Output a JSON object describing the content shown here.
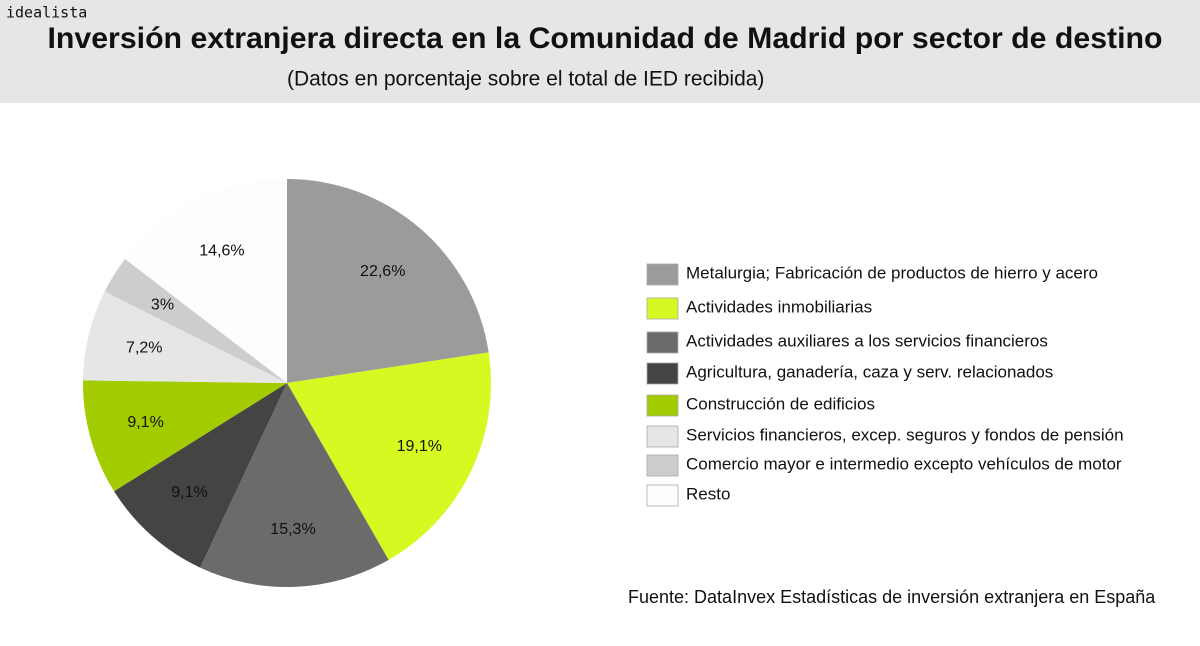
{
  "brand": "idealista",
  "chart_data": {
    "type": "pie",
    "title": "Inversión extranjera directa en la Comunidad de Madrid por sector de destino",
    "subtitle": "(Datos en porcentaje sobre el total de IED recibida)",
    "source": "Fuente: DataInvex Estadísticas de inversión extranjera en España",
    "categories": [
      "Metalurgia; Fabricación de productos de hierro y acero",
      "Actividades inmobiliarias",
      "Actividades auxiliares a los servicios financieros",
      "Agricultura, ganadería, caza y serv. relacionados",
      "Construcción de edificios",
      "Servicios financieros, excep. seguros y fondos de pensión",
      "Comercio mayor e intermedio excepto vehículos de motor",
      "Resto"
    ],
    "values": [
      22.6,
      19.1,
      15.3,
      9.1,
      9.1,
      7.2,
      3,
      14.6
    ],
    "value_labels": [
      "22,6%",
      "19,1%",
      "15,3%",
      "9,1%",
      "9,1%",
      "7,2%",
      "3%",
      "14,6%"
    ],
    "colors": [
      "#9b9b9a",
      "#d4fa22",
      "#6b6b6a",
      "#444443",
      "#a3cc00",
      "#e6e6e5",
      "#cdcdcb",
      "#fdfdfd"
    ]
  }
}
